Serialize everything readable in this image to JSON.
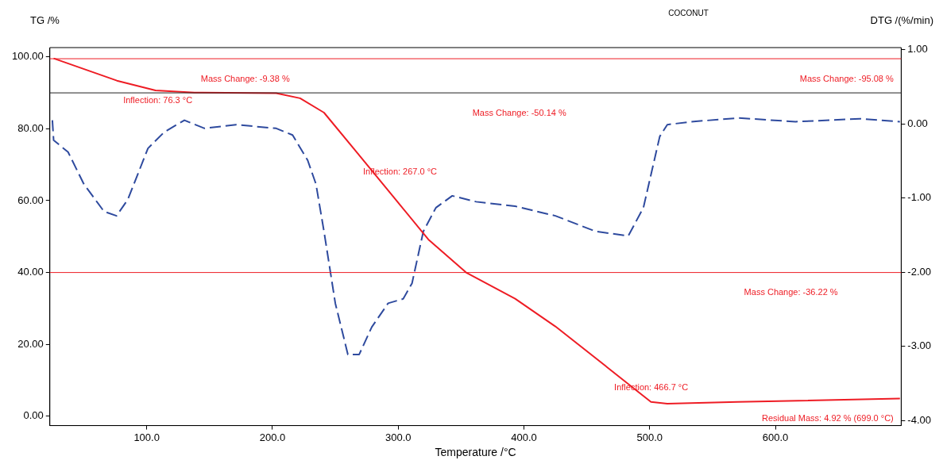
{
  "chart_data": {
    "type": "line",
    "title": "COCONUT",
    "xlabel": "Temperature /°C",
    "ylabel": "TG /%",
    "y2label": "DTG /(%/min)",
    "xlim": [
      23,
      700
    ],
    "xticks": [
      {
        "value": 100,
        "label": "100.0"
      },
      {
        "value": 200,
        "label": "200.0"
      },
      {
        "value": 300,
        "label": "300.0"
      },
      {
        "value": 400,
        "label": "400.0"
      },
      {
        "value": 500,
        "label": "500.0"
      },
      {
        "value": 600,
        "label": "600.0"
      }
    ],
    "ylim": [
      -2.6,
      102.6
    ],
    "yticks": [
      {
        "value": 0,
        "label": "0.00"
      },
      {
        "value": 20,
        "label": "20.00"
      },
      {
        "value": 40,
        "label": "40.00"
      },
      {
        "value": 60,
        "label": "60.00"
      },
      {
        "value": 80,
        "label": "80.00"
      },
      {
        "value": 100,
        "label": "100.00"
      }
    ],
    "y2lim": [
      -4.07,
      1.03
    ],
    "y2ticks": [
      {
        "value": -4,
        "label": "-4.00"
      },
      {
        "value": -3,
        "label": "-3.00"
      },
      {
        "value": -2,
        "label": "-2.00"
      },
      {
        "value": -1,
        "label": "-1.00"
      },
      {
        "value": 0,
        "label": "0.00"
      },
      {
        "value": 1,
        "label": "1.00"
      }
    ],
    "grid": false,
    "legend": false,
    "series": [
      {
        "color": "#ee1c24",
        "line_style": "solid",
        "x": [
          26,
          76.3,
          107,
          138,
          203,
          222,
          241,
          267,
          298,
          324,
          354,
          393,
          425,
          466.7,
          489,
          501,
          514,
          570,
          699
        ],
        "values": [
          99.6,
          93.4,
          90.7,
          90.1,
          89.9,
          88.5,
          84.5,
          73.5,
          60.3,
          49.2,
          40.0,
          32.7,
          25,
          13.5,
          7.3,
          4.0,
          3.5,
          4.0,
          4.9
        ]
      },
      {
        "color": "#2e4a9e",
        "line_style": "dashed",
        "axis": "y2",
        "x": [
          25,
          26,
          37.5,
          50,
          66,
          76,
          85,
          101,
          114,
          130,
          146,
          171,
          203,
          216,
          228,
          234.6,
          241,
          250,
          260,
          269,
          279,
          292,
          304,
          311,
          320,
          330,
          343,
          362,
          393,
          425,
          457,
          483,
          495,
          508,
          514,
          533,
          571,
          616,
          667,
          699
        ],
        "values": [
          0.05,
          -0.22,
          -0.38,
          -0.81,
          -1.18,
          -1.24,
          -1.02,
          -0.33,
          -0.11,
          0.05,
          -0.06,
          -0.01,
          -0.06,
          -0.15,
          -0.49,
          -0.81,
          -1.45,
          -2.42,
          -3.11,
          -3.11,
          -2.74,
          -2.42,
          -2.36,
          -2.15,
          -1.45,
          -1.13,
          -0.97,
          -1.05,
          -1.11,
          -1.24,
          -1.45,
          -1.51,
          -1.13,
          -0.17,
          -0.01,
          0.03,
          0.08,
          0.03,
          0.07,
          0.03
        ]
      }
    ],
    "ref_lines": [
      {
        "axis": "y",
        "value": 99.5,
        "color": "#ee1c24"
      },
      {
        "axis": "y",
        "value": 90.0,
        "color": "#222222"
      },
      {
        "axis": "y",
        "value": 40.0,
        "color": "#ee1c24"
      }
    ],
    "annotations": [
      {
        "text": "Inflection: 76.3 °C",
        "x": 76.3,
        "y": 93.4
      },
      {
        "text": "Mass Change: -9.38 %",
        "x": 138,
        "y": 99.5
      },
      {
        "text": "Inflection: 267.0 °C",
        "x": 267,
        "y": 73.5
      },
      {
        "text": "Mass Change: -50.14 %",
        "x": 354,
        "y": 90.0
      },
      {
        "text": "Mass Change: -95.08 %",
        "x": 699,
        "y": 99.5
      },
      {
        "text": "Mass Change: -36.22 %",
        "x": 570,
        "y": 40.0
      },
      {
        "text": "Inflection: 466.7 °C",
        "x": 466.7,
        "y": 13.5
      },
      {
        "text": "Residual Mass: 4.92 % (699.0 °C)",
        "x": 699,
        "y": 4.9
      }
    ]
  }
}
